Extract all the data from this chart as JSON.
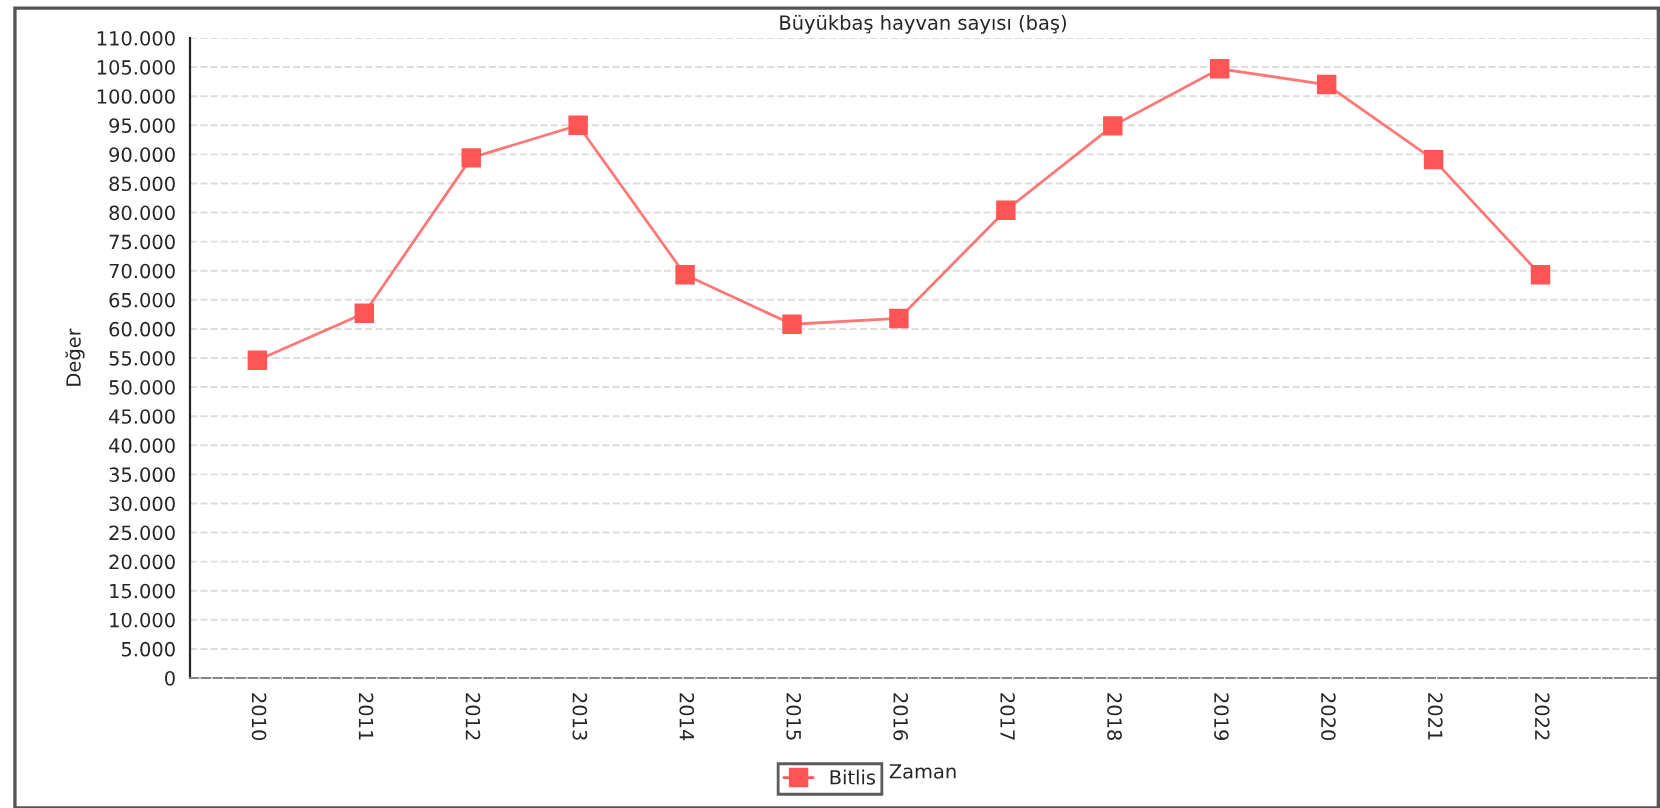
{
  "chart_data": {
    "type": "line",
    "title": "Büyükbaş hayvan sayısı (baş)",
    "xlabel": "Zaman",
    "ylabel": "Değer",
    "categories": [
      "2010",
      "2011",
      "2012",
      "2013",
      "2014",
      "2015",
      "2016",
      "2017",
      "2018",
      "2019",
      "2020",
      "2021",
      "2022"
    ],
    "series": [
      {
        "name": "Bitlis",
        "color": "#ff5555",
        "values": [
          54600,
          62700,
          89400,
          95000,
          69300,
          60800,
          61800,
          80400,
          94900,
          104700,
          102000,
          89100,
          69300
        ]
      }
    ],
    "ylim": [
      0,
      110000
    ],
    "yticks": [
      {
        "value": 0,
        "label": "0"
      },
      {
        "value": 5000,
        "label": "5.000"
      },
      {
        "value": 10000,
        "label": "10.000"
      },
      {
        "value": 15000,
        "label": "15.000"
      },
      {
        "value": 20000,
        "label": "20.000"
      },
      {
        "value": 25000,
        "label": "25.000"
      },
      {
        "value": 30000,
        "label": "30.000"
      },
      {
        "value": 35000,
        "label": "35.000"
      },
      {
        "value": 40000,
        "label": "40.000"
      },
      {
        "value": 45000,
        "label": "45.000"
      },
      {
        "value": 50000,
        "label": "50.000"
      },
      {
        "value": 55000,
        "label": "55.000"
      },
      {
        "value": 60000,
        "label": "60.000"
      },
      {
        "value": 65000,
        "label": "65.000"
      },
      {
        "value": 70000,
        "label": "70.000"
      },
      {
        "value": 75000,
        "label": "75.000"
      },
      {
        "value": 80000,
        "label": "80.000"
      },
      {
        "value": 85000,
        "label": "85.000"
      },
      {
        "value": 90000,
        "label": "90.000"
      },
      {
        "value": 95000,
        "label": "95.000"
      },
      {
        "value": 100000,
        "label": "100.000"
      },
      {
        "value": 105000,
        "label": "105.000"
      },
      {
        "value": 110000,
        "label": "110.000"
      }
    ],
    "grid": "y",
    "legend": "bottom",
    "marker": "square",
    "line_style": "solid"
  }
}
